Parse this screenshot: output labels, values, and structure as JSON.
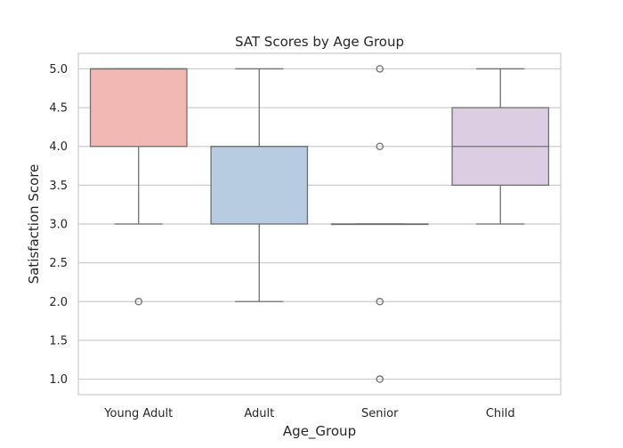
{
  "chart_data": {
    "type": "box",
    "title": "SAT Scores by Age Group",
    "xlabel": "Age_Group",
    "ylabel": "Satisfaction Score",
    "categories": [
      "Young Adult",
      "Adult",
      "Senior",
      "Child"
    ],
    "ylim": [
      0.8,
      5.2
    ],
    "yticks": [
      "1.0",
      "1.5",
      "2.0",
      "2.5",
      "3.0",
      "3.5",
      "4.0",
      "4.5",
      "5.0"
    ],
    "grid": "horizontal",
    "boxes": [
      {
        "category": "Young Adult",
        "q1": 4.0,
        "median": 5.0,
        "q3": 5.0,
        "whisker_low": 3.0,
        "whisker_high": 5.0,
        "outliers": [
          2.0
        ],
        "color": "#f2b8b3"
      },
      {
        "category": "Adult",
        "q1": 3.0,
        "median": 4.0,
        "q3": 4.0,
        "whisker_low": 2.0,
        "whisker_high": 5.0,
        "outliers": [],
        "color": "#b8cce1"
      },
      {
        "category": "Senior",
        "q1": 3.0,
        "median": 3.0,
        "q3": 3.0,
        "whisker_low": 3.0,
        "whisker_high": 3.0,
        "outliers": [
          1.0,
          2.0,
          4.0,
          5.0
        ],
        "color": "#c6dfc1"
      },
      {
        "category": "Child",
        "q1": 3.5,
        "median": 4.0,
        "q3": 4.5,
        "whisker_low": 3.0,
        "whisker_high": 5.0,
        "outliers": [],
        "color": "#dccde3"
      }
    ],
    "colors": {
      "box_edge": "#707070",
      "grid": "#cccccc",
      "spine": "#cccccc"
    }
  }
}
